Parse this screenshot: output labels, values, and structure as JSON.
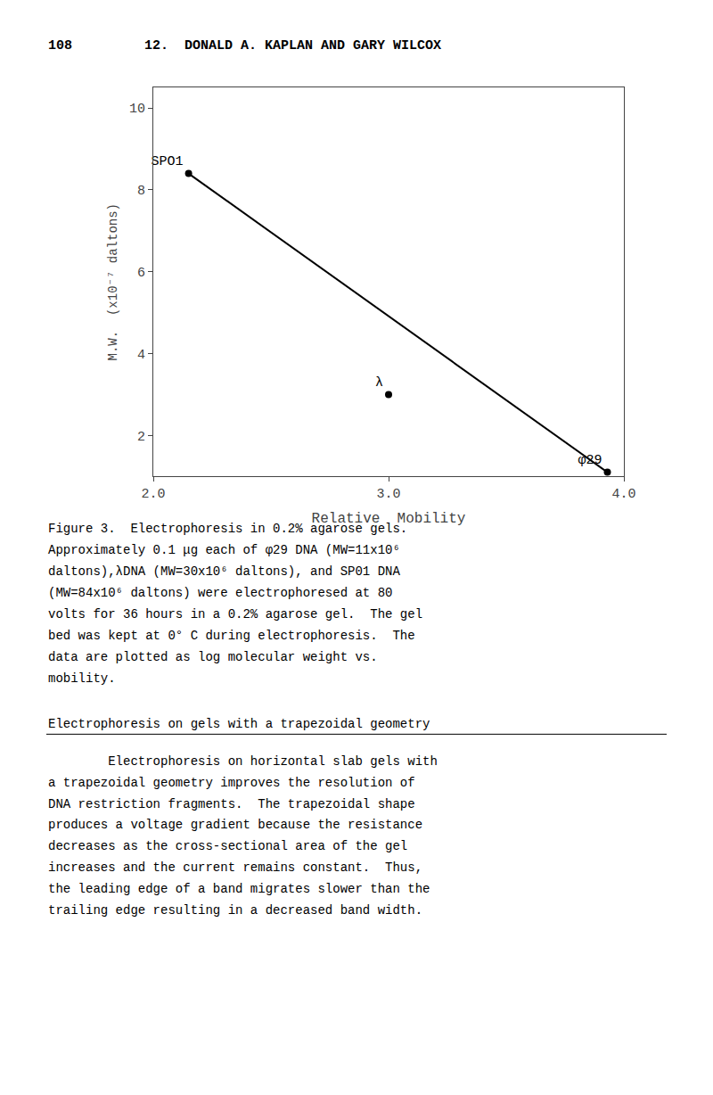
{
  "chart_data": {
    "type": "scatter",
    "header": [
      "108",
      "12.  DONALD A. KAPLAN AND GARY WILCOX"
    ],
    "series": [
      {
        "type": "line",
        "x": [
          2.15,
          3.93
        ],
        "values": [
          8.4,
          1.1
        ],
        "color": "#000000"
      },
      {
        "type": "scatter",
        "x": [
          2.15,
          3.0,
          3.93
        ],
        "values": [
          8.4,
          3.0,
          1.1
        ],
        "labels": [
          "SPO1",
          "λ",
          "φ29"
        ],
        "color": "#000000"
      }
    ],
    "xlabel": "Relative  Mobility",
    "ylabel": "M.W.  (x10⁻⁷ daltons)",
    "xlim": [
      2.0,
      4.0
    ],
    "ylim": [
      1.0,
      10.5
    ],
    "xticks": [
      {
        "value": 2,
        "label": "2.0"
      },
      {
        "value": 3,
        "label": "3.0"
      },
      {
        "value": 4,
        "label": "4.0"
      }
    ],
    "yticks": [
      2,
      4,
      6,
      8,
      10
    ],
    "grid": false,
    "caption": [
      "Figure 3.  Electrophoresis in 0.2% agarose gels.",
      "Approximately 0.1 μg each of φ29 DNA (MW=11x10⁶",
      "daltons),λDNA (MW=30x10⁶ daltons), and SP01 DNA",
      "(MW=84x10⁶ daltons) were electrophoresed at 80",
      "volts for 36 hours in a 0.2% agarose gel.  The gel",
      "bed was kept at 0° C during electrophoresis.  The",
      "data are plotted as log molecular weight vs.",
      "mobility."
    ],
    "section_heading": "Electrophoresis on gels with a trapezoidal geometry",
    "body": [
      "        Electrophoresis on horizontal slab gels with",
      "a trapezoidal geometry improves the resolution of",
      "DNA restriction fragments.  The trapezoidal shape",
      "produces a voltage gradient because the resistance",
      "decreases as the cross-sectional area of the gel",
      "increases and the current remains constant.  Thus,",
      "the leading edge of a band migrates slower than the",
      "trailing edge resulting in a decreased band width."
    ]
  }
}
